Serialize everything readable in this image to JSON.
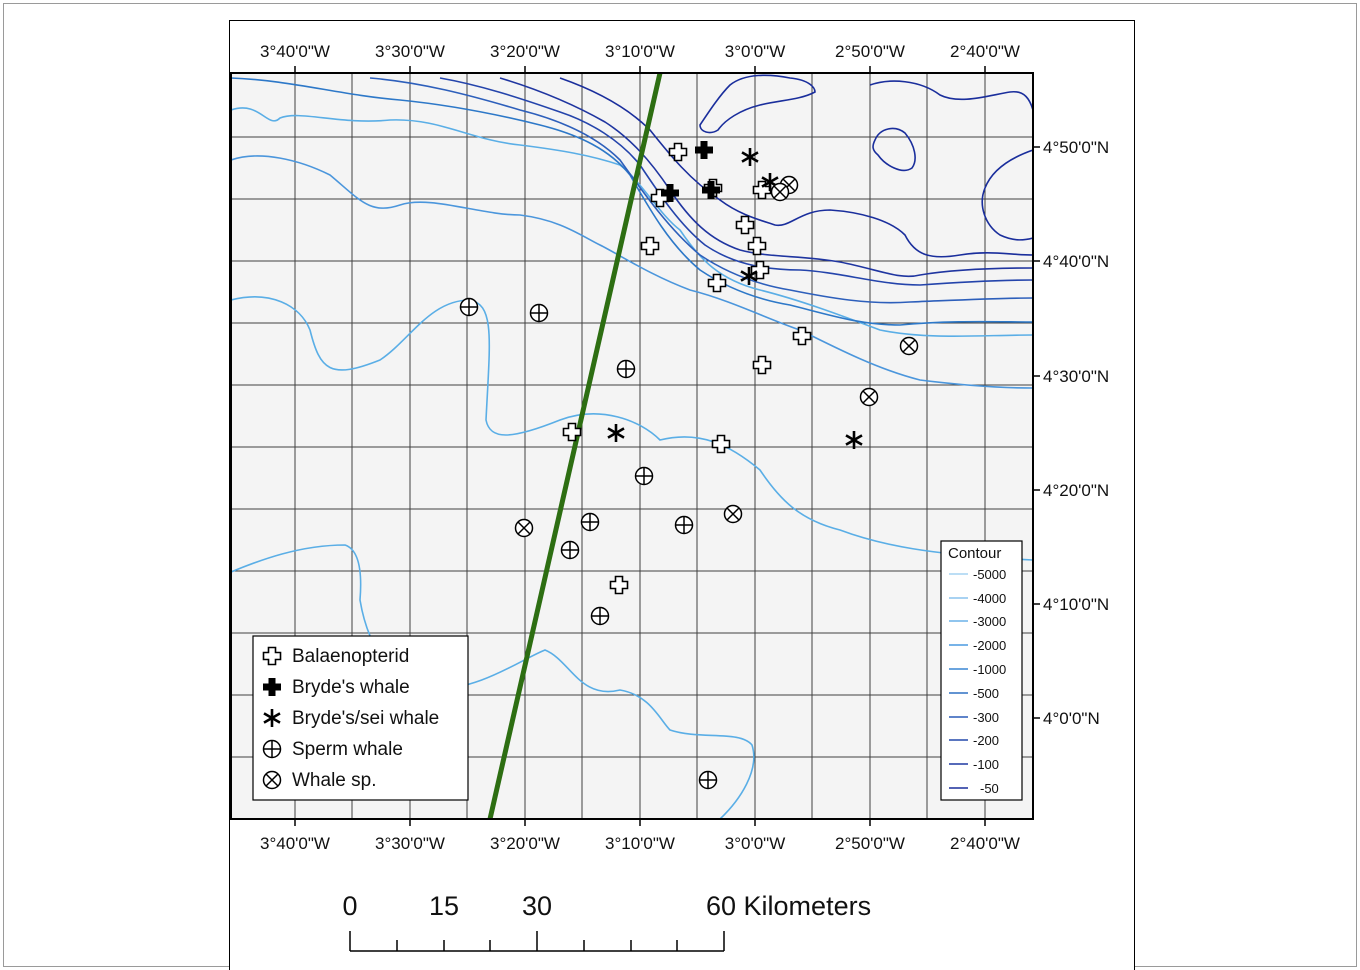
{
  "map": {
    "top_lon_labels": [
      "3°40'0\"W",
      "3°30'0\"W",
      "3°20'0\"W",
      "3°10'0\"W",
      "3°0'0\"W",
      "2°50'0\"W",
      "2°40'0\"W"
    ],
    "bottom_lon_labels": [
      "3°40'0\"W",
      "3°30'0\"W",
      "3°20'0\"W",
      "3°10'0\"W",
      "3°0'0\"W",
      "2°50'0\"W",
      "2°40'0\"W"
    ],
    "lat_labels": [
      "4°50'0\"N",
      "4°40'0\"N",
      "4°30'0\"N",
      "4°20'0\"N",
      "4°10'0\"N",
      "4°0'0\"N"
    ],
    "colors": {
      "background": "#f4f4f4",
      "grid": "#404040",
      "track": "#2d6e12",
      "contour_deep": "#5aaee6",
      "contour_mid": "#2d78c8",
      "contour_shallow": "#1a2e9c",
      "symbol": "#000000"
    }
  },
  "species_legend": [
    {
      "icon": "open-cross-icon",
      "label": "Balaenopterid"
    },
    {
      "icon": "solid-cross-icon",
      "label": "Bryde's whale"
    },
    {
      "icon": "asterisk-icon",
      "label": "Bryde's/sei whale"
    },
    {
      "icon": "circle-plus-icon",
      "label": "Sperm whale"
    },
    {
      "icon": "circle-x-icon",
      "label": "Whale sp."
    }
  ],
  "contour_legend": {
    "title": "Contour",
    "items": [
      "-5000",
      "-4000",
      "-3000",
      "-2000",
      "-1000",
      "-500",
      "-300",
      "-200",
      "-100",
      "-50"
    ]
  },
  "scale_bar": {
    "labels": [
      "0",
      "15",
      "30",
      "60 Kilometers"
    ]
  }
}
